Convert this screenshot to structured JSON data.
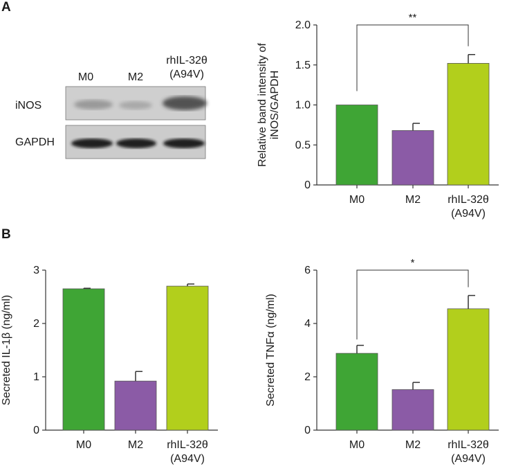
{
  "panels": {
    "a": "A",
    "b": "B"
  },
  "blot": {
    "lanes": [
      "M0",
      "M2",
      "rhIL-32θ\n(A94V)"
    ],
    "bands": [
      "iNOS",
      "GAPDH"
    ]
  },
  "chart_data": [
    {
      "type": "bar",
      "categories": [
        "M0",
        "M2",
        "rhIL-32θ (A94V)"
      ],
      "values": [
        1.0,
        0.68,
        1.52
      ],
      "errors": [
        0,
        0.09,
        0.11
      ],
      "colors": [
        "#3fa535",
        "#8b5ba6",
        "#b2cf1c"
      ],
      "title": "",
      "xlabel": "",
      "ylabel": "Relative band intensity of iNOS/GAPDH",
      "ylim": [
        0,
        2.0
      ],
      "ticks": [
        "0",
        "0.5",
        "1.0",
        "1.5",
        "2.0"
      ],
      "significance": [
        {
          "from": "M0",
          "to": "rhIL-32θ (A94V)",
          "label": "**"
        }
      ]
    },
    {
      "type": "bar",
      "categories": [
        "M0",
        "M2",
        "rhIL-32θ (A94V)"
      ],
      "values": [
        2.65,
        0.92,
        2.7
      ],
      "errors": [
        0.01,
        0.18,
        0.04
      ],
      "colors": [
        "#3fa535",
        "#8b5ba6",
        "#b2cf1c"
      ],
      "title": "",
      "xlabel": "",
      "ylabel": "Secreted IL-1β (ng/ml)",
      "ylim": [
        0,
        3
      ],
      "ticks": [
        "0",
        "1",
        "2",
        "3"
      ],
      "significance": []
    },
    {
      "type": "bar",
      "categories": [
        "M0",
        "M2",
        "rhIL-32θ (A94V)"
      ],
      "values": [
        2.88,
        1.52,
        4.55
      ],
      "errors": [
        0.3,
        0.27,
        0.5
      ],
      "colors": [
        "#3fa535",
        "#8b5ba6",
        "#b2cf1c"
      ],
      "title": "",
      "xlabel": "",
      "ylabel": "Secreted TNFα (ng/ml)",
      "ylim": [
        0,
        6
      ],
      "ticks": [
        "0",
        "2",
        "4",
        "6"
      ],
      "significance": [
        {
          "from": "M0",
          "to": "rhIL-32θ (A94V)",
          "label": "*"
        }
      ]
    }
  ]
}
